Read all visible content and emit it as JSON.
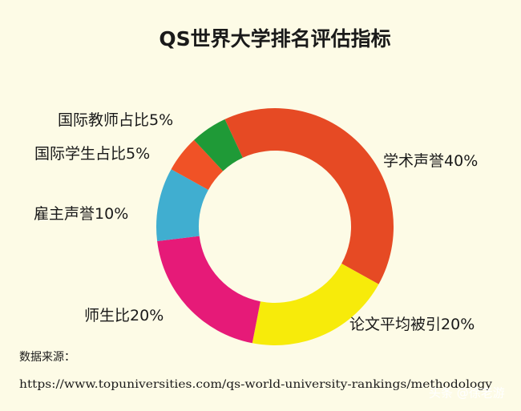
{
  "chart_data": {
    "type": "donut",
    "title": "QS世界大学排名评估指标",
    "categories": [
      "学术声誉",
      "论文平均被引",
      "师生比",
      "雇主声誉",
      "国际学生占比",
      "国际教师占比"
    ],
    "values": [
      40,
      20,
      20,
      10,
      5,
      5
    ],
    "value_labels": [
      "40%",
      "20%",
      "20%",
      "10%",
      "5%",
      "5%"
    ],
    "colors": [
      "#e64a24",
      "#f7eb0a",
      "#e61a78",
      "#40aed0",
      "#f05226",
      "#1f9a37"
    ],
    "source_label": "数据来源：",
    "source_url": "https://www.topuniversities.com/qs-world-university-rankings/methodology",
    "watermark": "头条 @徐老游"
  }
}
